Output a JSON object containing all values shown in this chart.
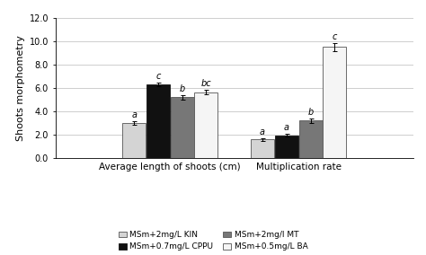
{
  "ylabel": "Shoots morphometry",
  "group_labels": [
    "Average length of shoots (cm)",
    "Multiplication rate"
  ],
  "bar_labels": [
    "MSm+2mg/L KIN",
    "MSm+0.7mg/L CPPU",
    "MSm+2mg/l MT",
    "MSm+0.5mg/L BA"
  ],
  "bar_colors": [
    "#d4d4d4",
    "#111111",
    "#777777",
    "#f5f5f5"
  ],
  "bar_edgecolors": [
    "#555555",
    "#111111",
    "#555555",
    "#555555"
  ],
  "values": [
    [
      3.0,
      6.3,
      5.2,
      5.65
    ],
    [
      1.6,
      1.95,
      3.2,
      9.5
    ]
  ],
  "errors": [
    [
      0.18,
      0.18,
      0.2,
      0.18
    ],
    [
      0.12,
      0.12,
      0.2,
      0.35
    ]
  ],
  "letter_labels": [
    [
      "a",
      "c",
      "b",
      "bc"
    ],
    [
      "a",
      "a",
      "b",
      "c"
    ]
  ],
  "ylim": [
    0.0,
    12.0
  ],
  "yticks": [
    0.0,
    2.0,
    4.0,
    6.0,
    8.0,
    10.0,
    12.0
  ],
  "figsize": [
    4.74,
    2.84
  ],
  "dpi": 100,
  "legend_fontsize": 6.5,
  "axis_fontsize": 7.5,
  "tick_fontsize": 7,
  "letter_fontsize": 7,
  "ylabel_fontsize": 8,
  "bar_width": 0.12,
  "group_centers": [
    0.42,
    1.08
  ],
  "bar_offsets": [
    -0.185,
    -0.062,
    0.062,
    0.185
  ]
}
